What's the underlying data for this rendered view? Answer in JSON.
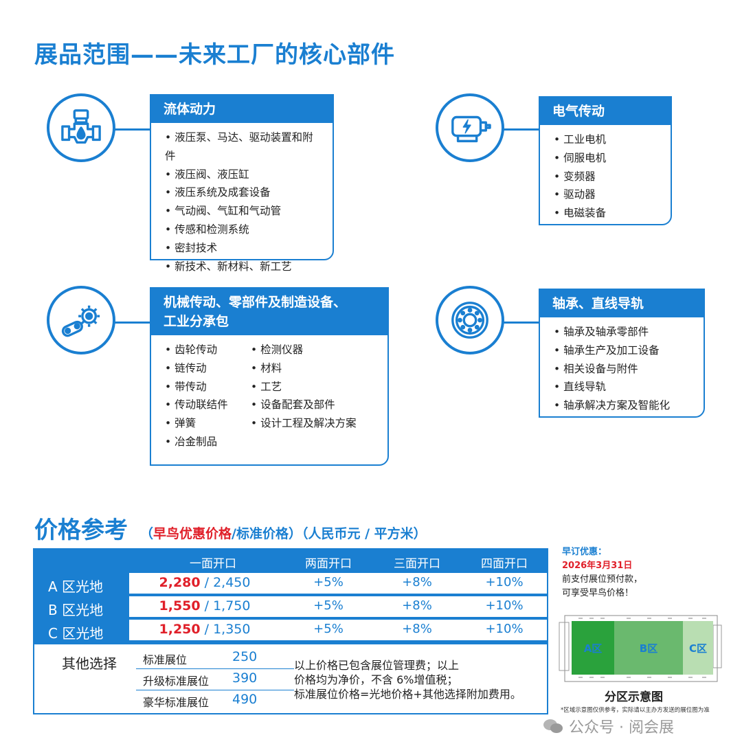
{
  "section1": {
    "title": "展品范围——未来工厂的核心部件",
    "cards": {
      "fluid": {
        "title": "流体动力",
        "items": [
          "液压泵、马达、驱动装置和附件",
          "液压阀、液压缸",
          "液压系统及成套设备",
          "气动阀、气缸和气动管",
          "传感和检测系统",
          "密封技术",
          "新技术、新材料、新工艺"
        ]
      },
      "electric": {
        "title": "电气传动",
        "items": [
          "工业电机",
          "伺服电机",
          "变频器",
          "驱动器",
          "电磁装备"
        ]
      },
      "mechanical": {
        "title_line1": "机械传动、零部件及制造设备、",
        "title_line2": "工业分承包",
        "col1": [
          "齿轮传动",
          "链传动",
          "带传动",
          "传动联结件",
          "弹簧",
          "冶金制品"
        ],
        "col2": [
          "检测仪器",
          "材料",
          "工艺",
          "设备配套及部件",
          "设计工程及解决方案"
        ]
      },
      "bearing": {
        "title": "轴承、直线导轨",
        "items": [
          "轴承及轴承零部件",
          "轴承生产及加工设备",
          "相关设备与附件",
          "直线导轨",
          "轴承解决方案及智能化"
        ]
      }
    },
    "icons": [
      "valve-icon",
      "motor-icon",
      "gear-chain-icon",
      "bearing-icon"
    ]
  },
  "section2": {
    "title": "价格参考",
    "subtitle_red": "早鸟优惠价格",
    "subtitle_rest": "/标准价格）（人民币元 / 平方米）",
    "subtitle_open": "（",
    "headers": [
      "一面开口",
      "两面开口",
      "三面开口",
      "四面开口"
    ],
    "rows": [
      {
        "label": "A 区光地",
        "early": "2,280",
        "std": " / 2,450",
        "two": "+5%",
        "three": "+8%",
        "four": "+10%"
      },
      {
        "label": "B 区光地",
        "early": "1,550",
        "std": " / 1,750",
        "two": "+5%",
        "three": "+8%",
        "four": "+10%"
      },
      {
        "label": "C 区光地",
        "early": "1,250",
        "std": " / 1,350",
        "two": "+5%",
        "three": "+8%",
        "four": "+10%"
      }
    ],
    "other_label": "其他选择",
    "options": [
      {
        "name": "标准展位",
        "value": "250"
      },
      {
        "name": "升级标准展位",
        "value": "390"
      },
      {
        "name": "豪华标准展位",
        "value": "490"
      }
    ],
    "note_lines": [
      "以上价格已包含展位管理费；以上",
      "价格均为净价，不含 6%增值税；",
      "标准展位价格=光地价格+其他选择附加费用。"
    ]
  },
  "promo": {
    "line1": "早订优惠：",
    "line2": "2026年3月31日",
    "line3": "前支付展位预付款，",
    "line4": "可享受早鸟价格！"
  },
  "map": {
    "zones": [
      "A区",
      "B区",
      "C区"
    ],
    "title": "分区示意图",
    "note": "*区域示意图仅供参考，实际请以主办方发送的展位图为准"
  },
  "watermark": "公众号 · 阅会展",
  "colors": {
    "brand_blue": "#1a7fd1",
    "early_red": "#e0202a",
    "zone_a": "#2aa23c",
    "zone_b": "#6ab96e",
    "zone_c": "#b9deb2"
  }
}
